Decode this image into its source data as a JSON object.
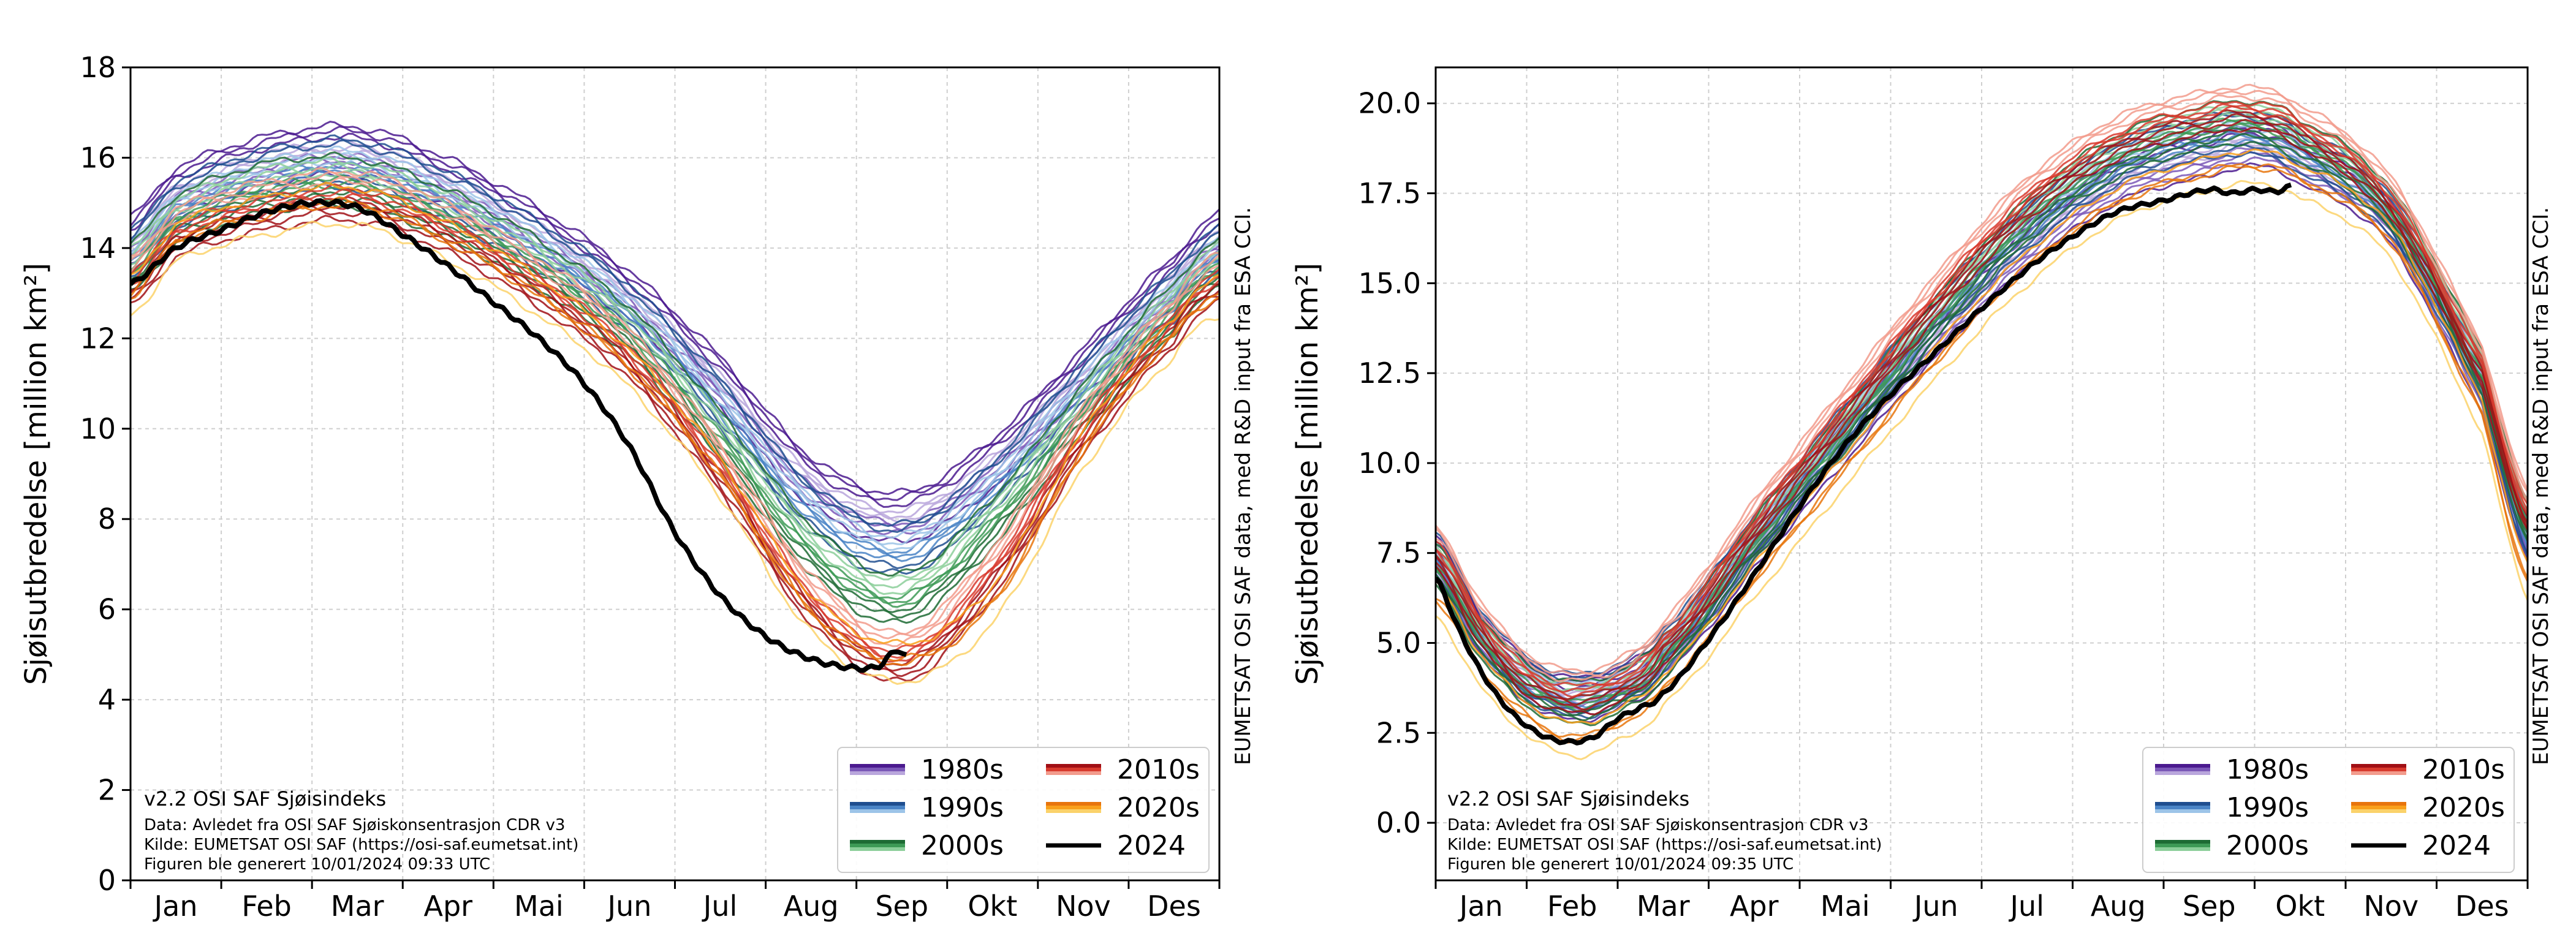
{
  "chart_data": [
    {
      "type": "line",
      "ylabel": "Sjøisutbredelse [million km²]",
      "ylim": [
        0,
        18
      ],
      "yticks": [
        "0",
        "2",
        "4",
        "6",
        "8",
        "10",
        "12",
        "14",
        "16",
        "18"
      ],
      "months": [
        "Jan",
        "Feb",
        "Mar",
        "Apr",
        "Mai",
        "Jun",
        "Jul",
        "Aug",
        "Sep",
        "Okt",
        "Nov",
        "Des"
      ],
      "xlim": [
        0,
        12
      ],
      "grid": true,
      "legend_position": "lower-right",
      "credit_lines": [
        "v2.2 OSI SAF Sjøisindeks",
        "Data: Avledet fra OSI SAF Sjøiskonsentrasjon CDR v3",
        "Kilde: EUMETSAT OSI SAF (https://osi-saf.eumetsat.int)",
        "Figuren ble generert 10/01/2024 09:33 UTC"
      ],
      "side_note": "EUMETSAT OSI SAF data, med R&D input fra ESA CCI.",
      "decade_envelopes": [
        {
          "name": "1980s",
          "colors": [
            "#4b1a8f",
            "#7b58b8",
            "#b9a6dc"
          ],
          "x": [
            0,
            0.5,
            1.5,
            2.5,
            3.5,
            4.5,
            5.5,
            6.5,
            7.5,
            8.5,
            9.5,
            10.5,
            11.5,
            12
          ],
          "y": [
            14.1,
            15.2,
            15.9,
            16.1,
            15.4,
            14.3,
            12.9,
            11.0,
            8.8,
            8.0,
            9.2,
            11.2,
            13.2,
            14.2
          ]
        },
        {
          "name": "1990s",
          "colors": [
            "#1f4e8f",
            "#4a84c6",
            "#9cc4e8"
          ],
          "x": [
            0,
            0.5,
            1.5,
            2.5,
            3.5,
            4.5,
            5.5,
            6.5,
            7.5,
            8.5,
            9.5,
            10.5,
            11.5,
            12
          ],
          "y": [
            13.8,
            14.9,
            15.6,
            15.8,
            15.1,
            14.0,
            12.6,
            10.5,
            8.2,
            7.3,
            8.7,
            10.9,
            12.9,
            13.9
          ]
        },
        {
          "name": "2000s",
          "colors": [
            "#1d6b34",
            "#3d9a56",
            "#8ccf9a"
          ],
          "x": [
            0,
            0.5,
            1.5,
            2.5,
            3.5,
            4.5,
            5.5,
            6.5,
            7.5,
            8.5,
            9.5,
            10.5,
            11.5,
            12
          ],
          "y": [
            13.5,
            14.6,
            15.3,
            15.4,
            14.7,
            13.6,
            12.1,
            9.8,
            7.3,
            6.2,
            7.9,
            10.4,
            12.6,
            13.6
          ]
        },
        {
          "name": "2010s",
          "colors": [
            "#a10f15",
            "#d83a2e",
            "#f29b8c"
          ],
          "x": [
            0,
            0.5,
            1.5,
            2.5,
            3.5,
            4.5,
            5.5,
            6.5,
            7.5,
            8.5,
            9.5,
            10.5,
            11.5,
            12
          ],
          "y": [
            13.2,
            14.3,
            14.9,
            15.1,
            14.4,
            13.2,
            11.6,
            9.1,
            6.2,
            4.9,
            6.8,
            9.9,
            12.3,
            13.3
          ]
        },
        {
          "name": "2020s",
          "colors": [
            "#e8750d",
            "#f9a01b",
            "#fbd26a"
          ],
          "x": [
            0,
            0.5,
            1.5,
            2.5,
            3.5,
            4.5,
            5.5,
            6.5,
            7.5,
            8.5,
            9.5,
            10.5,
            11.5,
            12
          ],
          "y": [
            13.0,
            14.2,
            14.8,
            15.0,
            14.2,
            13.0,
            11.4,
            9.0,
            6.0,
            4.9,
            6.2,
            9.6,
            12.1,
            13.0
          ]
        }
      ],
      "series_2024": {
        "name": "2024",
        "color": "#000000",
        "x": [
          0,
          0.5,
          1.0,
          1.5,
          2.0,
          2.5,
          3.0,
          3.5,
          4.0,
          4.5,
          5.0,
          5.5,
          6.0,
          6.5,
          7.0,
          7.5,
          8.0,
          8.25,
          8.45,
          8.55
        ],
        "y": [
          13.2,
          14.0,
          14.4,
          14.8,
          15.0,
          14.9,
          14.3,
          13.6,
          12.8,
          12.0,
          11.0,
          9.6,
          7.7,
          6.3,
          5.4,
          4.9,
          4.7,
          4.75,
          5.1,
          4.95
        ]
      },
      "legend": [
        {
          "label": "1980s",
          "colors": [
            "#4b1a8f",
            "#7b58b8",
            "#b9a6dc"
          ]
        },
        {
          "label": "2010s",
          "colors": [
            "#a10f15",
            "#d83a2e",
            "#f29b8c"
          ]
        },
        {
          "label": "1990s",
          "colors": [
            "#1f4e8f",
            "#4a84c6",
            "#9cc4e8"
          ]
        },
        {
          "label": "2020s",
          "colors": [
            "#e8750d",
            "#f9a01b",
            "#fbd26a"
          ]
        },
        {
          "label": "2000s",
          "colors": [
            "#1d6b34",
            "#3d9a56",
            "#8ccf9a"
          ]
        },
        {
          "label": "2024",
          "colors": [
            "#000000"
          ]
        }
      ]
    },
    {
      "type": "line",
      "ylabel": "Sjøisutbredelse [million km²]",
      "ylim": [
        -1.6,
        21.0
      ],
      "yticks": [
        "0.0",
        "2.5",
        "5.0",
        "7.5",
        "10.0",
        "12.5",
        "15.0",
        "17.5",
        "20.0"
      ],
      "ytick_values": [
        0,
        2.5,
        5,
        7.5,
        10,
        12.5,
        15,
        17.5,
        20
      ],
      "months": [
        "Jan",
        "Feb",
        "Mar",
        "Apr",
        "Mai",
        "Jun",
        "Jul",
        "Aug",
        "Sep",
        "Okt",
        "Nov",
        "Des"
      ],
      "xlim": [
        0,
        12
      ],
      "grid": true,
      "legend_position": "lower-right",
      "credit_lines": [
        "v2.2 OSI SAF Sjøisindeks",
        "Data: Avledet fra OSI SAF Sjøiskonsentrasjon CDR v3",
        "Kilde: EUMETSAT OSI SAF (https://osi-saf.eumetsat.int)",
        "Figuren ble generert 10/01/2024 09:35 UTC"
      ],
      "side_note": "EUMETSAT OSI SAF data, med R&D input fra ESA CCI.",
      "decade_envelopes": [
        {
          "name": "1980s",
          "colors": [
            "#4b1a8f",
            "#7b58b8",
            "#b9a6dc"
          ],
          "x": [
            0,
            0.5,
            1.0,
            1.5,
            2.0,
            2.5,
            3.5,
            4.5,
            5.5,
            6.5,
            7.5,
            8.5,
            9.0,
            9.5,
            10.5,
            11.5,
            12
          ],
          "y": [
            7.3,
            5.2,
            3.9,
            3.4,
            3.7,
            4.6,
            7.6,
            10.6,
            13.5,
            16.0,
            17.8,
            18.5,
            18.8,
            18.3,
            16.6,
            12.0,
            7.8
          ]
        },
        {
          "name": "1990s",
          "colors": [
            "#1f4e8f",
            "#4a84c6",
            "#9cc4e8"
          ],
          "x": [
            0,
            0.5,
            1.0,
            1.5,
            2.0,
            2.5,
            3.5,
            4.5,
            5.5,
            6.5,
            7.5,
            8.5,
            9.0,
            9.5,
            10.5,
            11.5,
            12
          ],
          "y": [
            7.4,
            5.3,
            4.0,
            3.5,
            3.8,
            4.8,
            7.9,
            11.0,
            14.0,
            16.5,
            18.3,
            19.0,
            19.1,
            18.6,
            16.8,
            12.3,
            7.9
          ]
        },
        {
          "name": "2000s",
          "colors": [
            "#1d6b34",
            "#3d9a56",
            "#8ccf9a"
          ],
          "x": [
            0,
            0.5,
            1.0,
            1.5,
            2.0,
            2.5,
            3.5,
            4.5,
            5.5,
            6.5,
            7.5,
            8.5,
            9.0,
            9.5,
            10.5,
            11.5,
            12
          ],
          "y": [
            7.1,
            5.1,
            3.8,
            3.3,
            3.6,
            4.6,
            7.8,
            10.9,
            14.0,
            16.7,
            18.5,
            19.3,
            19.4,
            18.9,
            17.0,
            12.5,
            8.3
          ]
        },
        {
          "name": "2010s",
          "colors": [
            "#a10f15",
            "#d83a2e",
            "#f29b8c"
          ],
          "x": [
            0,
            0.5,
            1.0,
            1.5,
            2.0,
            2.5,
            3.5,
            4.5,
            5.5,
            6.5,
            7.5,
            8.5,
            9.0,
            9.5,
            10.5,
            11.5,
            12
          ],
          "y": [
            7.6,
            5.5,
            4.1,
            3.6,
            3.9,
            5.0,
            8.3,
            11.5,
            14.6,
            17.3,
            19.0,
            19.7,
            19.8,
            19.3,
            17.3,
            12.7,
            8.6
          ]
        },
        {
          "name": "2020s",
          "colors": [
            "#e8750d",
            "#f9a01b",
            "#fbd26a"
          ],
          "x": [
            0,
            0.5,
            1.0,
            1.5,
            2.0,
            2.5,
            3.5,
            4.5,
            5.5,
            6.5,
            7.5,
            8.5,
            9.0,
            9.5,
            10.5,
            11.5,
            12
          ],
          "y": [
            6.3,
            4.3,
            3.0,
            2.4,
            2.8,
            3.8,
            6.8,
            9.9,
            12.9,
            15.5,
            17.3,
            18.1,
            18.3,
            17.9,
            16.2,
            11.4,
            6.8
          ]
        }
      ],
      "series_2024": {
        "name": "2024",
        "color": "#000000",
        "x": [
          0,
          0.25,
          0.5,
          0.75,
          1.0,
          1.25,
          1.5,
          1.75,
          2.0,
          2.25,
          2.5,
          3.0,
          3.5,
          4.0,
          4.5,
          5.0,
          5.5,
          6.0,
          6.5,
          7.0,
          7.5,
          8.0,
          8.5,
          8.75,
          9.0,
          9.25,
          9.4
        ],
        "y": [
          6.8,
          5.4,
          4.2,
          3.3,
          2.7,
          2.35,
          2.25,
          2.4,
          2.9,
          3.2,
          3.6,
          5.1,
          6.9,
          8.8,
          10.5,
          11.9,
          13.1,
          14.3,
          15.4,
          16.3,
          17.0,
          17.3,
          17.6,
          17.5,
          17.6,
          17.55,
          17.7
        ]
      },
      "legend": [
        {
          "label": "1980s",
          "colors": [
            "#4b1a8f",
            "#7b58b8",
            "#b9a6dc"
          ]
        },
        {
          "label": "2010s",
          "colors": [
            "#a10f15",
            "#d83a2e",
            "#f29b8c"
          ]
        },
        {
          "label": "1990s",
          "colors": [
            "#1f4e8f",
            "#4a84c6",
            "#9cc4e8"
          ]
        },
        {
          "label": "2020s",
          "colors": [
            "#e8750d",
            "#f9a01b",
            "#fbd26a"
          ]
        },
        {
          "label": "2000s",
          "colors": [
            "#1d6b34",
            "#3d9a56",
            "#8ccf9a"
          ]
        },
        {
          "label": "2024",
          "colors": [
            "#000000"
          ]
        }
      ]
    }
  ]
}
